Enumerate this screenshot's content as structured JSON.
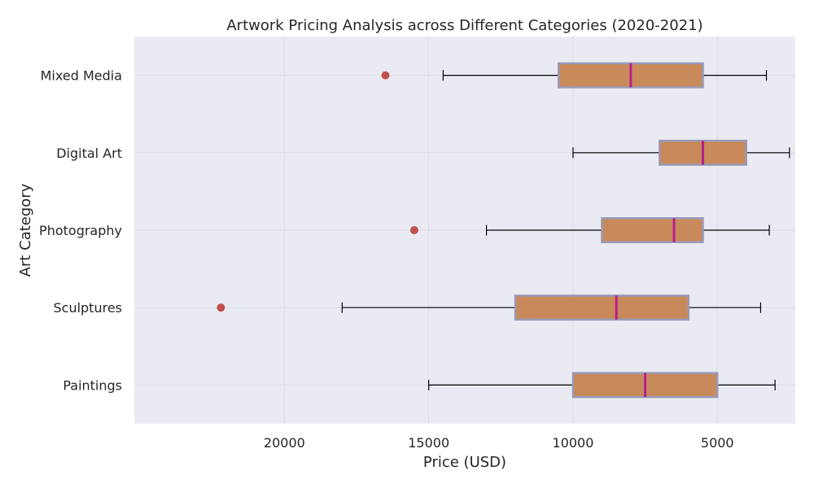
{
  "chart_data": {
    "type": "boxplot",
    "orientation": "horizontal",
    "title": "Artwork Pricing Analysis across Different Categories (2020-2021)",
    "xlabel": "Price (USD)",
    "ylabel": "Art Category",
    "x_inverted": true,
    "xlim": [
      25200,
      2300
    ],
    "xticks": [
      20000,
      15000,
      10000,
      5000
    ],
    "xtick_labels": [
      "20000",
      "15000",
      "10000",
      "5000"
    ],
    "grid": true,
    "colors": {
      "background": "#eaeaf2",
      "grid": "#dcdce4",
      "box_fill": "#c88a5a",
      "box_edge": "#9a9ab8",
      "median": "#b5208e",
      "whisker": "#000000",
      "outlier": "#c0504d"
    },
    "categories": [
      "Paintings",
      "Sculptures",
      "Photography",
      "Digital Art",
      "Mixed Media"
    ],
    "boxes": [
      {
        "category": "Paintings",
        "whisker_low": 3000,
        "q1": 5000,
        "median": 7500,
        "q3": 10000,
        "whisker_high": 15000,
        "outliers": []
      },
      {
        "category": "Sculptures",
        "whisker_low": 3500,
        "q1": 6000,
        "median": 8500,
        "q3": 12000,
        "whisker_high": 18000,
        "outliers": [
          22200
        ]
      },
      {
        "category": "Photography",
        "whisker_low": 3200,
        "q1": 5500,
        "median": 6500,
        "q3": 9000,
        "whisker_high": 13000,
        "outliers": [
          15500
        ]
      },
      {
        "category": "Digital Art",
        "whisker_low": 2500,
        "q1": 4000,
        "median": 5500,
        "q3": 7000,
        "whisker_high": 10000,
        "outliers": []
      },
      {
        "category": "Mixed Media",
        "whisker_low": 3300,
        "q1": 5500,
        "median": 8000,
        "q3": 10500,
        "whisker_high": 14500,
        "outliers": [
          16500
        ]
      }
    ]
  }
}
